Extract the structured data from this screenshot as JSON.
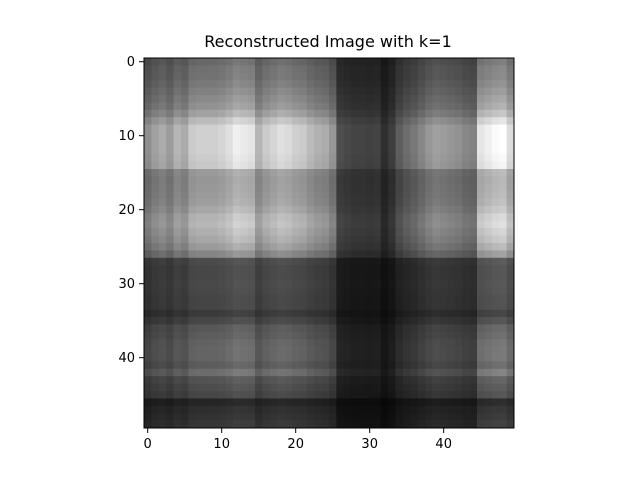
{
  "chart_data": {
    "type": "heatmap",
    "title": "Reconstructed Image with k=1",
    "xlabel": "",
    "ylabel": "",
    "colormap": "gray",
    "rank": 1,
    "shape": [
      50,
      50
    ],
    "x_ticks": [
      0,
      10,
      20,
      30,
      40
    ],
    "y_ticks": [
      0,
      10,
      20,
      30,
      40
    ],
    "xlim": [
      -0.5,
      49.5
    ],
    "ylim": [
      49.5,
      -0.5
    ],
    "row_factor": [
      0.5,
      0.54,
      0.55,
      0.58,
      0.62,
      0.66,
      0.7,
      0.78,
      0.9,
      1.0,
      1.0,
      1.0,
      1.0,
      0.98,
      0.96,
      0.74,
      0.72,
      0.73,
      0.74,
      0.76,
      0.8,
      0.86,
      0.88,
      0.84,
      0.8,
      0.74,
      0.64,
      0.36,
      0.34,
      0.34,
      0.35,
      0.34,
      0.33,
      0.33,
      0.28,
      0.34,
      0.42,
      0.44,
      0.47,
      0.48,
      0.48,
      0.44,
      0.52,
      0.4,
      0.37,
      0.34,
      0.18,
      0.22,
      0.24,
      0.26
    ],
    "col_factor": [
      0.55,
      0.62,
      0.66,
      0.6,
      0.7,
      0.66,
      0.78,
      0.8,
      0.8,
      0.8,
      0.82,
      0.86,
      0.92,
      0.9,
      0.88,
      0.7,
      0.78,
      0.82,
      0.86,
      0.84,
      0.8,
      0.78,
      0.72,
      0.68,
      0.66,
      0.58,
      0.3,
      0.28,
      0.26,
      0.26,
      0.25,
      0.26,
      0.18,
      0.24,
      0.36,
      0.42,
      0.46,
      0.52,
      0.58,
      0.62,
      0.6,
      0.58,
      0.56,
      0.52,
      0.5,
      0.88,
      0.92,
      0.96,
      0.98,
      0.85
    ],
    "value_range": [
      0,
      1
    ]
  }
}
